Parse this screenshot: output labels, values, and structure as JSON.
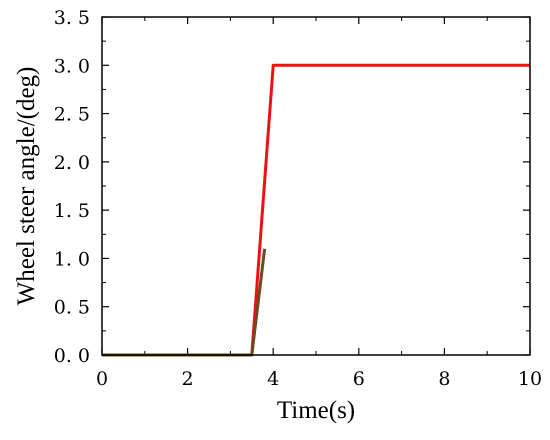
{
  "chart_data": {
    "type": "line",
    "title": "",
    "xlabel": "Time(s)",
    "ylabel": "Wheel steer angle/(deg)",
    "xlim": [
      0,
      10
    ],
    "ylim": [
      0,
      3.5
    ],
    "x_ticks": [
      "0",
      "2",
      "4",
      "6",
      "8",
      "10"
    ],
    "y_ticks": [
      "0. 0",
      "0. 5",
      "1. 0",
      "1. 5",
      "2. 0",
      "2. 5",
      "3. 0",
      "3. 5"
    ],
    "grid": false,
    "legend": "none",
    "series": [
      {
        "color": "#ee1111",
        "x": [
          0,
          3.5,
          4.0,
          10
        ],
        "y": [
          0,
          0,
          3.0,
          3.0
        ]
      },
      {
        "color": "#6b4a22",
        "x": [
          0,
          3.5,
          3.8
        ],
        "y": [
          0,
          0,
          1.1
        ]
      }
    ]
  }
}
